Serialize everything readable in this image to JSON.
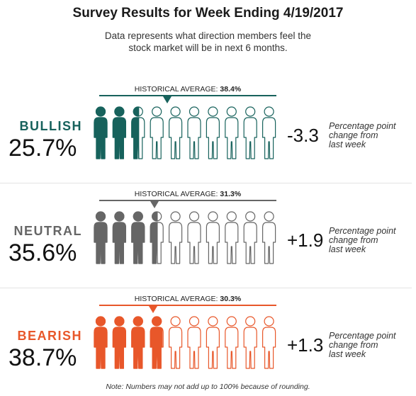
{
  "title": "Survey Results for Week Ending 4/19/2017",
  "subtitle_line1": "Data represents what direction members feel the",
  "subtitle_line2": "stock market will be in next 6 months.",
  "hist_prefix": "HISTORICAL AVERAGE:",
  "footnote": "Note: Numbers may not add up to 100% because of rounding.",
  "chart_data": {
    "type": "pictograph",
    "figures_total": 10,
    "series": [
      {
        "name": "BULLISH",
        "value": 25.7,
        "value_label": "25.7%",
        "historical_average": 38.4,
        "historical_label": "38.4%",
        "change": -3.3,
        "change_label": "-3.3",
        "color": "#17625c"
      },
      {
        "name": "NEUTRAL",
        "value": 35.6,
        "value_label": "35.6%",
        "historical_average": 31.3,
        "historical_label": "31.3%",
        "change": 1.9,
        "change_label": "+1.9",
        "color": "#666666"
      },
      {
        "name": "BEARISH",
        "value": 38.7,
        "value_label": "38.7%",
        "historical_average": 30.3,
        "historical_label": "30.3%",
        "change": 1.3,
        "change_label": "+1.3",
        "color": "#e8572a"
      }
    ],
    "change_note_line1": "Percentage point",
    "change_note_line2": "change from",
    "change_note_line3": "last week"
  }
}
